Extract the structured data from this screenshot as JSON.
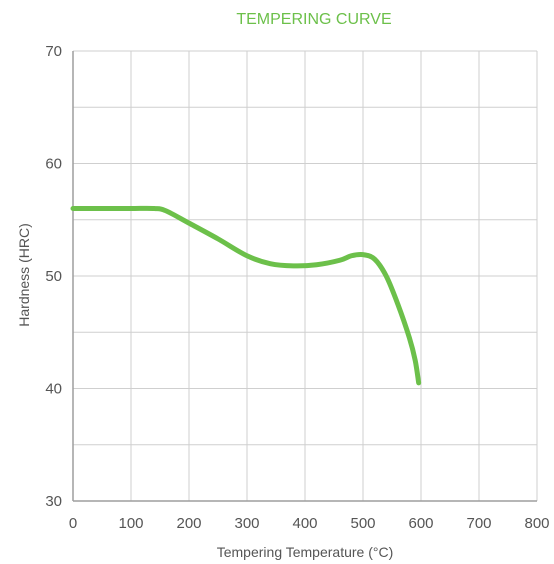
{
  "chart_data": {
    "type": "line",
    "title": "TEMPERING CURVE",
    "xlabel": "Tempering Temperature (°C)",
    "ylabel": "Hardness (HRC)",
    "xlim": [
      0,
      800
    ],
    "ylim": [
      30,
      70
    ],
    "x_ticks": [
      0,
      100,
      200,
      300,
      400,
      500,
      600,
      700,
      800
    ],
    "y_ticks": [
      30,
      40,
      50,
      60,
      70
    ],
    "x_ticks_text": [
      "0",
      "100",
      "200",
      "300",
      "400",
      "500",
      "600",
      "700",
      "800"
    ],
    "y_ticks_text": [
      "30",
      "40",
      "50",
      "60",
      "70"
    ],
    "x_grid_step": 100,
    "y_grid_step": 5,
    "grid": true,
    "legend": "none",
    "series": [
      {
        "color": "#6cc04a",
        "points": [
          [
            0,
            56
          ],
          [
            50,
            56
          ],
          [
            100,
            56
          ],
          [
            140,
            56
          ],
          [
            160,
            55.8
          ],
          [
            200,
            54.7
          ],
          [
            250,
            53.3
          ],
          [
            300,
            51.8
          ],
          [
            340,
            51.1
          ],
          [
            380,
            50.9
          ],
          [
            420,
            51
          ],
          [
            460,
            51.4
          ],
          [
            480,
            51.8
          ],
          [
            500,
            51.9
          ],
          [
            520,
            51.5
          ],
          [
            540,
            50
          ],
          [
            560,
            47.5
          ],
          [
            580,
            44.5
          ],
          [
            590,
            42.5
          ],
          [
            596,
            40.5
          ]
        ]
      }
    ]
  }
}
